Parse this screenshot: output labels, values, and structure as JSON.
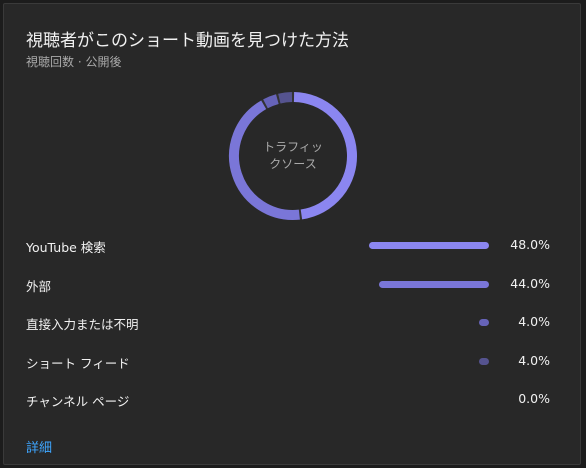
{
  "card": {
    "title": "視聴者がこのショート動画を見つけた方法",
    "subtitle": "視聴回数 · 公開後"
  },
  "donut": {
    "center_label": "トラフィックソース"
  },
  "sources": [
    {
      "label": "YouTube 検索",
      "value": "48.0%",
      "percent": 48.0,
      "color": "#8b86f0"
    },
    {
      "label": "外部",
      "value": "44.0%",
      "percent": 44.0,
      "color": "#7a76d8"
    },
    {
      "label": "直接入力または不明",
      "value": "4.0%",
      "percent": 4.0,
      "color": "#6663b8"
    },
    {
      "label": "ショート フィード",
      "value": "4.0%",
      "percent": 4.0,
      "color": "#55538f"
    },
    {
      "label": "チャンネル ページ",
      "value": "0.0%",
      "percent": 0.0,
      "color": "#4a4880"
    }
  ],
  "footer": {
    "details_link": "詳細"
  }
}
